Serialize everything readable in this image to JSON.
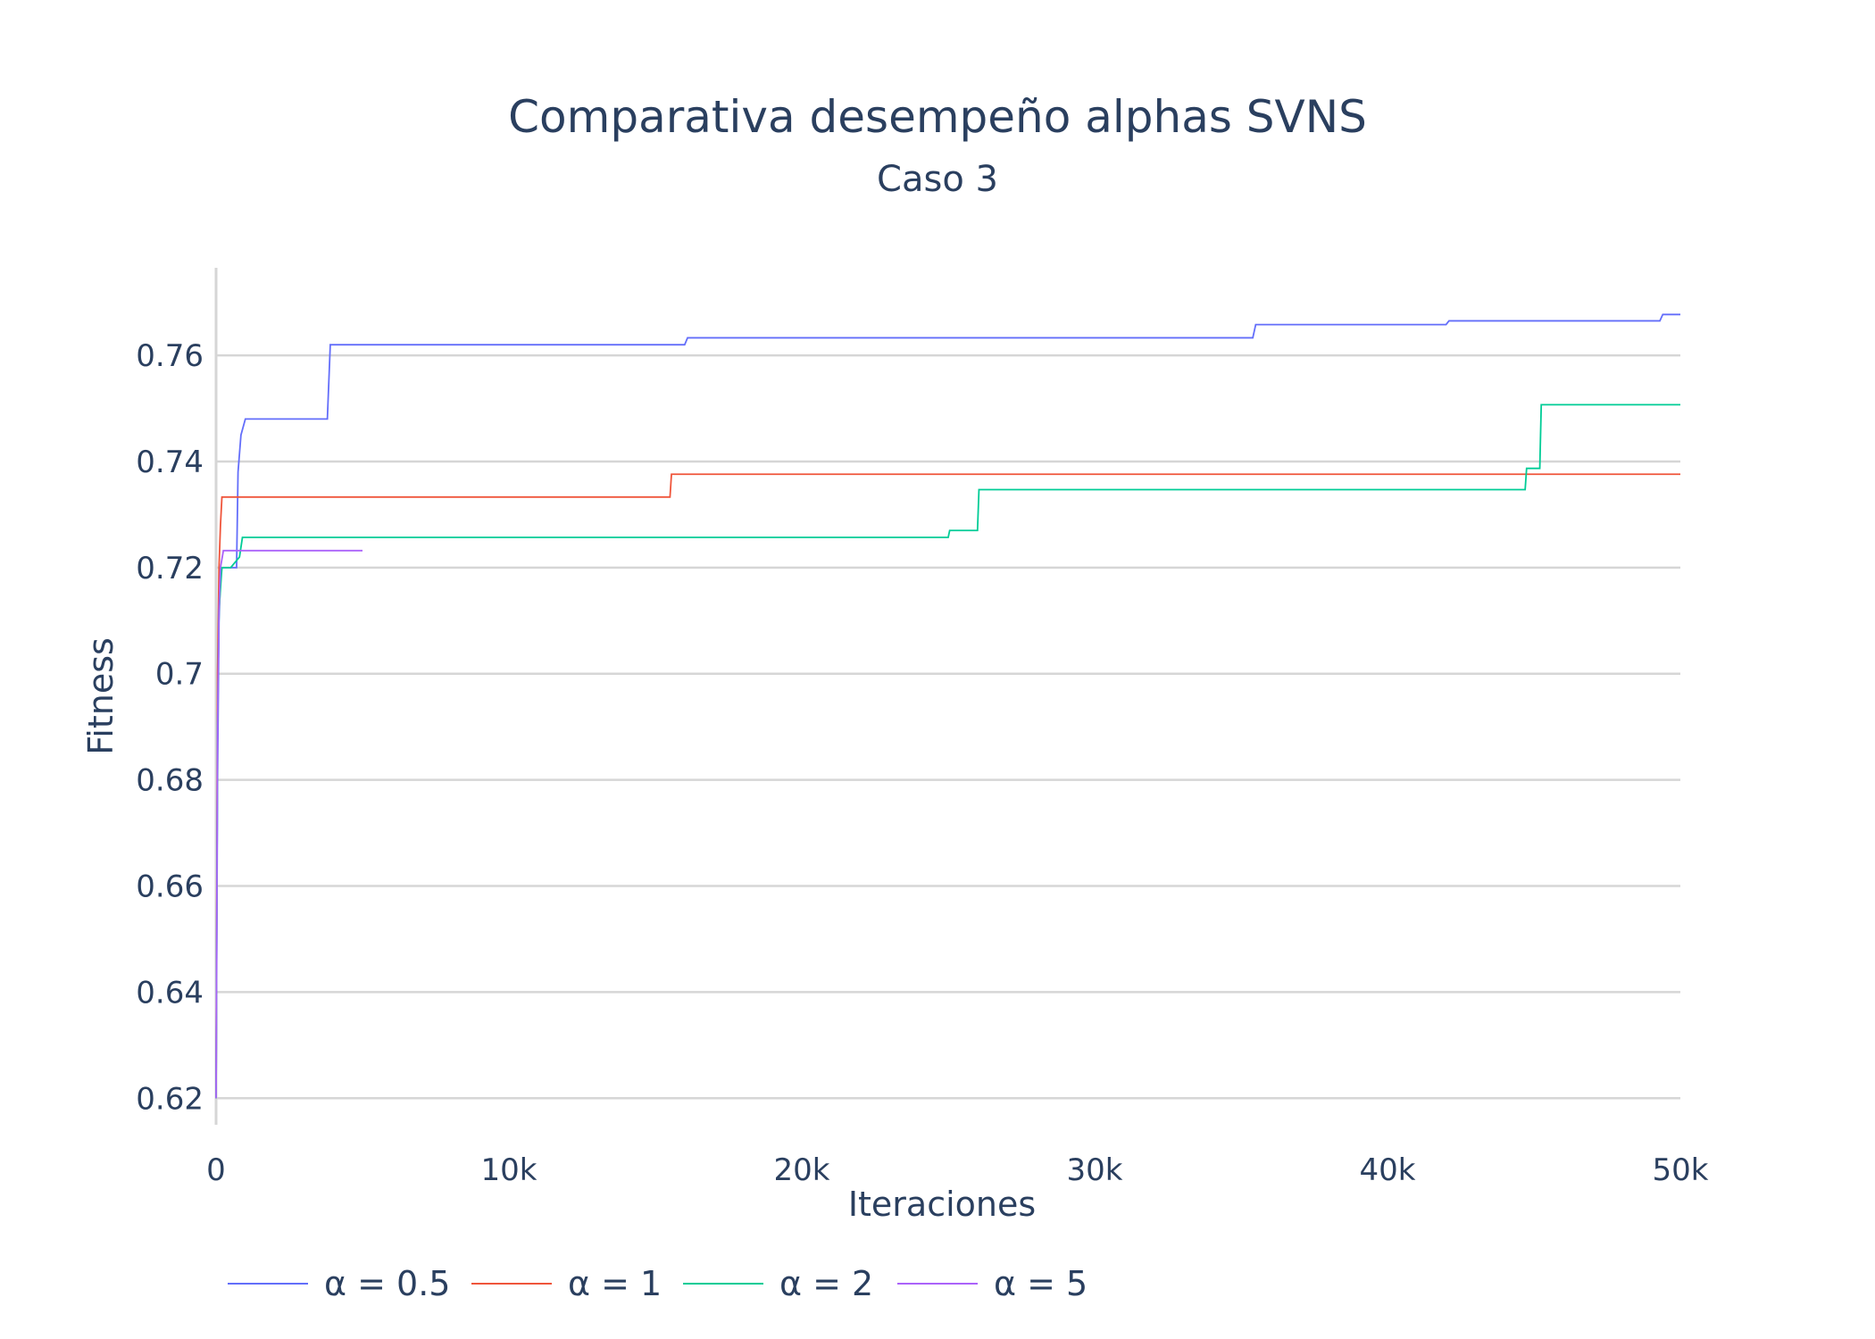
{
  "chart_data": {
    "type": "line",
    "title": "Comparativa desempeño alphas SVNS",
    "subtitle": "Caso 3",
    "xlabel": "Iteraciones",
    "ylabel": "Fitness",
    "xlim": [
      0,
      50000
    ],
    "ylim": [
      0.615,
      0.7765
    ],
    "xticks": [
      0,
      10000,
      20000,
      30000,
      40000,
      50000
    ],
    "xtick_labels": [
      "0",
      "10k",
      "20k",
      "30k",
      "40k",
      "50k"
    ],
    "yticks": [
      0.62,
      0.64,
      0.66,
      0.68,
      0.7,
      0.72,
      0.74,
      0.76
    ],
    "ytick_labels": [
      "0.62",
      "0.64",
      "0.66",
      "0.68",
      "0.7",
      "0.72",
      "0.74",
      "0.76"
    ],
    "grid": true,
    "legend_position": "bottom",
    "series": [
      {
        "name": "α = 0.5",
        "color": "#636efa",
        "x": [
          0,
          50,
          100,
          150,
          200,
          700,
          750,
          850,
          1000,
          3800,
          3900,
          16000,
          16100,
          35400,
          35500,
          42000,
          42100,
          49300,
          49400,
          50000
        ],
        "y": [
          0.62,
          0.68,
          0.71,
          0.718,
          0.72,
          0.72,
          0.738,
          0.745,
          0.748,
          0.748,
          0.762,
          0.762,
          0.7633,
          0.7633,
          0.7658,
          0.7658,
          0.7665,
          0.7665,
          0.7677,
          0.7677
        ]
      },
      {
        "name": "α = 1",
        "color": "#ef553b",
        "x": [
          0,
          50,
          100,
          150,
          200,
          15500,
          15550,
          50000
        ],
        "y": [
          0.62,
          0.7,
          0.72,
          0.728,
          0.7333,
          0.7333,
          0.7376,
          0.7376
        ]
      },
      {
        "name": "α = 2",
        "color": "#00cc96",
        "x": [
          0,
          50,
          100,
          200,
          500,
          800,
          900,
          25000,
          25050,
          26000,
          26050,
          44700,
          44750,
          45200,
          45250,
          50000
        ],
        "y": [
          0.62,
          0.69,
          0.712,
          0.72,
          0.72,
          0.722,
          0.7257,
          0.7257,
          0.727,
          0.727,
          0.7347,
          0.7347,
          0.7387,
          0.7387,
          0.7507,
          0.7507
        ]
      },
      {
        "name": "α = 5",
        "color": "#ab63fa",
        "x": [
          0,
          50,
          100,
          150,
          250,
          5000
        ],
        "y": [
          0.62,
          0.69,
          0.712,
          0.72,
          0.7232,
          0.7232
        ]
      }
    ]
  }
}
